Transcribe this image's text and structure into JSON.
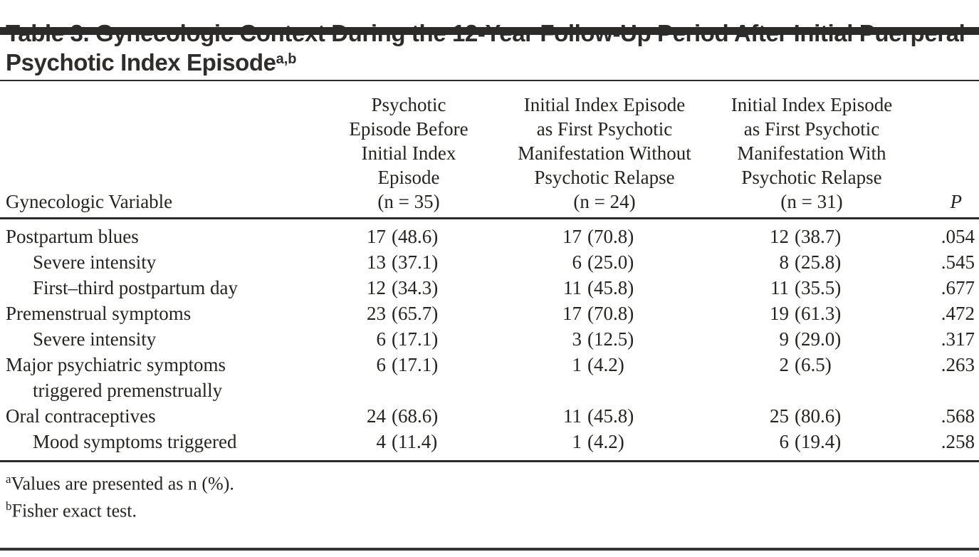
{
  "colors": {
    "text": "#262420",
    "bar": "#2b2a29",
    "rule": "#2b2a29"
  },
  "title": {
    "text": "Table 3. Gynecologic Context During the 12-Year Follow-Up Period After Initial Puerperal Psychotic Index Episode",
    "superscript": "a,b"
  },
  "header": {
    "row_label": "Gynecologic Variable",
    "p_label": "P",
    "groups": [
      {
        "lines": [
          "Psychotic",
          "Episode Before",
          "Initial Index",
          "Episode",
          "(n = 35)"
        ]
      },
      {
        "lines": [
          "Initial Index Episode",
          "as First Psychotic",
          "Manifestation Without",
          "Psychotic Relapse",
          "(n = 24)"
        ]
      },
      {
        "lines": [
          "Initial Index Episode",
          "as First Psychotic",
          "Manifestation With",
          "Psychotic Relapse",
          "(n = 31)"
        ]
      }
    ]
  },
  "rows": [
    {
      "label": "Postpartum blues",
      "indent": false,
      "c1": {
        "n": "17",
        "pct": "(48.6)"
      },
      "c2": {
        "n": "17",
        "pct": "(70.8)"
      },
      "c3": {
        "n": "12",
        "pct": "(38.7)"
      },
      "p": ".054"
    },
    {
      "label": "Severe intensity",
      "indent": true,
      "c1": {
        "n": "13",
        "pct": "(37.1)"
      },
      "c2": {
        "n": "6",
        "pct": "(25.0)"
      },
      "c3": {
        "n": "8",
        "pct": "(25.8)"
      },
      "p": ".545"
    },
    {
      "label": "First–third postpartum day",
      "indent": true,
      "c1": {
        "n": "12",
        "pct": "(34.3)"
      },
      "c2": {
        "n": "11",
        "pct": "(45.8)"
      },
      "c3": {
        "n": "11",
        "pct": "(35.5)"
      },
      "p": ".677"
    },
    {
      "label": "Premenstrual symptoms",
      "indent": false,
      "c1": {
        "n": "23",
        "pct": "(65.7)"
      },
      "c2": {
        "n": "17",
        "pct": "(70.8)"
      },
      "c3": {
        "n": "19",
        "pct": "(61.3)"
      },
      "p": ".472"
    },
    {
      "label": "Severe intensity",
      "indent": true,
      "c1": {
        "n": "6",
        "pct": "(17.1)"
      },
      "c2": {
        "n": "3",
        "pct": "(12.5)"
      },
      "c3": {
        "n": "9",
        "pct": "(29.0)"
      },
      "p": ".317"
    },
    {
      "label": "Major psychiatric symptoms",
      "label_line2": "triggered premenstrually",
      "indent": false,
      "c1": {
        "n": "6",
        "pct": "(17.1)"
      },
      "c2": {
        "n": "1",
        "pct": "(4.2)"
      },
      "c3": {
        "n": "2",
        "pct": "(6.5)"
      },
      "p": ".263"
    },
    {
      "label": "Oral contraceptives",
      "indent": false,
      "c1": {
        "n": "24",
        "pct": "(68.6)"
      },
      "c2": {
        "n": "11",
        "pct": "(45.8)"
      },
      "c3": {
        "n": "25",
        "pct": "(80.6)"
      },
      "p": ".568"
    },
    {
      "label": "Mood symptoms triggered",
      "indent": true,
      "c1": {
        "n": "4",
        "pct": "(11.4)"
      },
      "c2": {
        "n": "1",
        "pct": "(4.2)"
      },
      "c3": {
        "n": "6",
        "pct": "(19.4)"
      },
      "p": ".258"
    }
  ],
  "footnotes": [
    {
      "marker": "a",
      "text": "Values are presented as n (%)."
    },
    {
      "marker": "b",
      "text": "Fisher exact test."
    }
  ]
}
